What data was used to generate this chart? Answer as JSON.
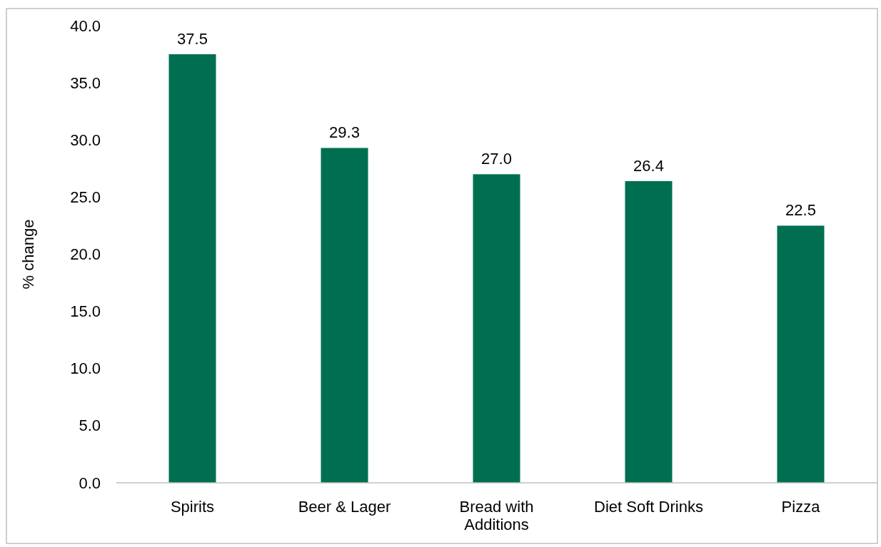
{
  "chart_data": {
    "type": "bar",
    "ylabel": "% change",
    "categories": [
      "Spirits",
      "Beer & Lager",
      "Bread with Additions",
      "Diet Soft Drinks",
      "Pizza"
    ],
    "values": [
      37.5,
      29.3,
      27.0,
      26.4,
      22.5
    ],
    "color": "#006f51",
    "value_labels": [
      "37.5",
      "29.3",
      "27.0",
      "26.4",
      "22.5"
    ],
    "ylim": [
      0,
      40
    ],
    "yticks": [
      {
        "value": 0,
        "label": "0.0"
      },
      {
        "value": 5,
        "label": "5.0"
      },
      {
        "value": 10,
        "label": "10.0"
      },
      {
        "value": 15,
        "label": "15.0"
      },
      {
        "value": 20,
        "label": "20.0"
      },
      {
        "value": 25,
        "label": "25.0"
      },
      {
        "value": 30,
        "label": "30.0"
      },
      {
        "value": 35,
        "label": "35.0"
      },
      {
        "value": 40,
        "label": "40.0"
      }
    ],
    "grid": false
  }
}
